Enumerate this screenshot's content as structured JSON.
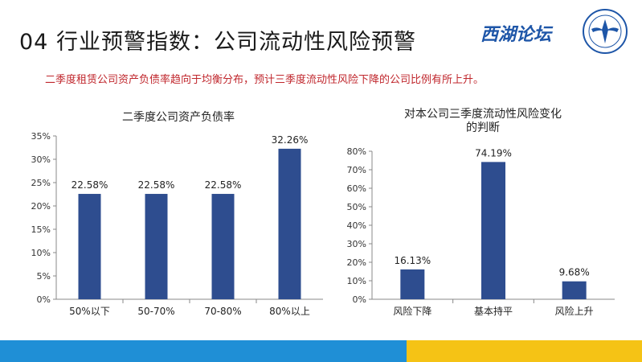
{
  "header": {
    "title": "04 行业预警指数：公司流动性风险预警",
    "logo_text": "西湖论坛",
    "subtitle": "二季度租赁公司资产负债率趋向于均衡分布，预计三季度流动性风险下降的公司比例有所上升。"
  },
  "colors": {
    "bar": "#2e4d8f",
    "subtitle": "#c0272d",
    "footer_blue": "#1f8fd6",
    "footer_yellow": "#f5c315",
    "logo": "#1e56a8"
  },
  "chart_data": [
    {
      "type": "bar",
      "title": "二季度公司资产负债率",
      "categories": [
        "50%以下",
        "50-70%",
        "70-80%",
        "80%以上"
      ],
      "values": [
        22.58,
        22.58,
        22.58,
        32.26
      ],
      "value_labels": [
        "22.58%",
        "22.58%",
        "22.58%",
        "32.26%"
      ],
      "ylim": [
        0,
        35
      ],
      "yticks": [
        0,
        5,
        10,
        15,
        20,
        25,
        30,
        35
      ],
      "ytick_labels": [
        "0%",
        "5%",
        "10%",
        "15%",
        "20%",
        "25%",
        "30%",
        "35%"
      ],
      "xlabel": "",
      "ylabel": "",
      "grid": false,
      "legend": "none"
    },
    {
      "type": "bar",
      "title": "对本公司三季度流动性风险变化的判断",
      "title_lines": [
        "对本公司三季度流动性风险变化",
        "的判断"
      ],
      "categories": [
        "风险下降",
        "基本持平",
        "风险上升"
      ],
      "values": [
        16.13,
        74.19,
        9.68
      ],
      "value_labels": [
        "16.13%",
        "74.19%",
        "9.68%"
      ],
      "ylim": [
        0,
        80
      ],
      "yticks": [
        0,
        10,
        20,
        30,
        40,
        50,
        60,
        70,
        80
      ],
      "ytick_labels": [
        "0%",
        "10%",
        "20%",
        "30%",
        "40%",
        "50%",
        "60%",
        "70%",
        "80%"
      ],
      "xlabel": "",
      "ylabel": "",
      "grid": false,
      "legend": "none"
    }
  ]
}
